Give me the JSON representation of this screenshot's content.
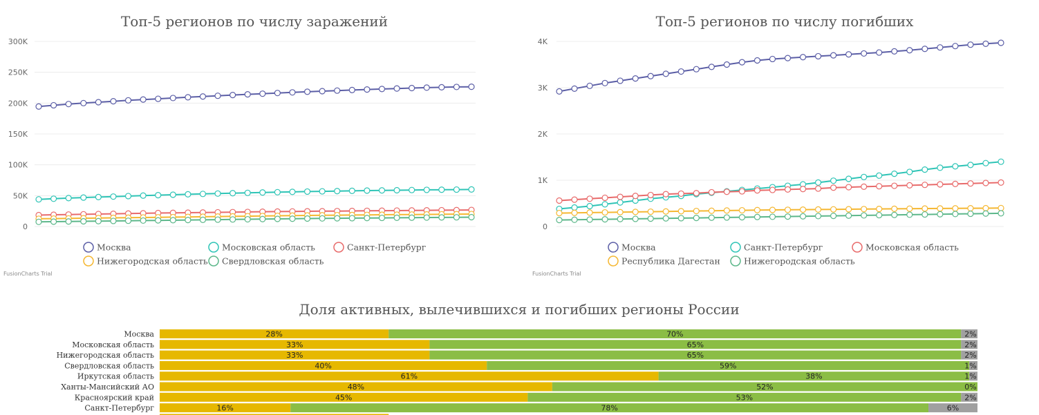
{
  "chart_data": [
    {
      "id": "infections",
      "type": "line",
      "title": "Топ-5 регионов по числу заражений",
      "ylim": [
        0,
        300000
      ],
      "y_ticks": [
        {
          "value": 0,
          "label": "0"
        },
        {
          "value": 50000,
          "label": "50K"
        },
        {
          "value": 100000,
          "label": "100K"
        },
        {
          "value": 150000,
          "label": "150K"
        },
        {
          "value": 200000,
          "label": "200K"
        },
        {
          "value": 250000,
          "label": "250K"
        },
        {
          "value": 300000,
          "label": "300K"
        }
      ],
      "grid": true,
      "legend_position": "bottom",
      "point_count": 30,
      "series": [
        {
          "name": "Москва",
          "color": "#5b5ea6",
          "values": [
            194500,
            196500,
            198500,
            200000,
            201500,
            203000,
            204500,
            205800,
            207000,
            208300,
            209500,
            210700,
            211900,
            213100,
            214200,
            215300,
            216400,
            217400,
            218400,
            219400,
            220300,
            221200,
            222100,
            222900,
            223700,
            224400,
            225100,
            225700,
            226200,
            226500
          ]
        },
        {
          "name": "Московская область",
          "color": "#2ec4b6",
          "values": [
            44000,
            45000,
            46000,
            46900,
            47700,
            48500,
            49300,
            50100,
            50800,
            51500,
            52200,
            52800,
            53400,
            54000,
            54500,
            55100,
            55600,
            56100,
            56600,
            57000,
            57400,
            57800,
            58200,
            58500,
            58800,
            59100,
            59400,
            59600,
            59800,
            60000
          ]
        },
        {
          "name": "Санкт-Петербург",
          "color": "#e86a6a",
          "values": [
            18500,
            19000,
            19400,
            19800,
            20200,
            20600,
            21000,
            21400,
            21800,
            22100,
            22400,
            22700,
            23000,
            23300,
            23600,
            23900,
            24200,
            24400,
            24600,
            24800,
            25000,
            25200,
            25400,
            25600,
            25800,
            26000,
            26200,
            26400,
            26600,
            26800
          ]
        },
        {
          "name": "Нижегородская область",
          "color": "#f5b731",
          "values": [
            12500,
            12800,
            13100,
            13400,
            13700,
            14000,
            14300,
            14600,
            14900,
            15200,
            15500,
            15800,
            16100,
            16400,
            16700,
            17000,
            17300,
            17600,
            17900,
            18200,
            18400,
            18600,
            18800,
            19000,
            19200,
            19400,
            19600,
            19800,
            20000,
            20200
          ]
        },
        {
          "name": "Свердловская область",
          "color": "#5cb78a",
          "values": [
            7500,
            7800,
            8100,
            8400,
            8700,
            9000,
            9300,
            9600,
            9900,
            10200,
            10500,
            10800,
            11100,
            11400,
            11700,
            12000,
            12300,
            12600,
            12900,
            13100,
            13300,
            13500,
            13700,
            13900,
            14100,
            14300,
            14500,
            14700,
            14900,
            15100
          ]
        }
      ],
      "watermark": "FusionCharts Trial"
    },
    {
      "id": "deaths",
      "type": "line",
      "title": "Топ-5 регионов по числу погибших",
      "ylim": [
        0,
        4000
      ],
      "y_ticks": [
        {
          "value": 0,
          "label": "0"
        },
        {
          "value": 1000,
          "label": "1K"
        },
        {
          "value": 2000,
          "label": "2K"
        },
        {
          "value": 3000,
          "label": "3K"
        },
        {
          "value": 4000,
          "label": "4K"
        }
      ],
      "grid": true,
      "legend_position": "bottom",
      "point_count": 30,
      "series": [
        {
          "name": "Москва",
          "color": "#5b5ea6",
          "values": [
            2920,
            2980,
            3040,
            3100,
            3150,
            3200,
            3250,
            3300,
            3350,
            3400,
            3450,
            3500,
            3550,
            3590,
            3620,
            3640,
            3660,
            3680,
            3700,
            3720,
            3740,
            3760,
            3785,
            3810,
            3840,
            3870,
            3900,
            3930,
            3950,
            3970
          ]
        },
        {
          "name": "Санкт-Петербург",
          "color": "#2ec4b6",
          "values": [
            380,
            410,
            440,
            480,
            520,
            560,
            600,
            630,
            660,
            700,
            730,
            760,
            790,
            820,
            850,
            880,
            910,
            950,
            990,
            1030,
            1070,
            1100,
            1140,
            1180,
            1230,
            1270,
            1300,
            1330,
            1370,
            1400
          ]
        },
        {
          "name": "Московская область",
          "color": "#e86a6a",
          "values": [
            560,
            580,
            600,
            620,
            640,
            660,
            680,
            700,
            710,
            720,
            740,
            750,
            760,
            780,
            790,
            800,
            810,
            820,
            840,
            850,
            860,
            870,
            880,
            890,
            900,
            910,
            920,
            930,
            940,
            950
          ]
        },
        {
          "name": "Республика Дагестан",
          "color": "#f5b731",
          "values": [
            290,
            295,
            300,
            305,
            310,
            315,
            320,
            325,
            330,
            335,
            340,
            345,
            350,
            355,
            358,
            361,
            364,
            367,
            370,
            373,
            376,
            379,
            382,
            385,
            388,
            390,
            392,
            394,
            396,
            398
          ]
        },
        {
          "name": "Нижегородская область",
          "color": "#5cb78a",
          "values": [
            140,
            145,
            150,
            155,
            160,
            165,
            170,
            175,
            180,
            185,
            190,
            195,
            200,
            205,
            210,
            215,
            220,
            225,
            230,
            235,
            240,
            245,
            250,
            255,
            260,
            265,
            270,
            275,
            280,
            285
          ]
        }
      ],
      "watermark": "FusionCharts Trial"
    },
    {
      "id": "shares",
      "type": "bar",
      "orientation": "horizontal",
      "stacked": "percent",
      "title": "Доля активных, вылечившихся и погибших регионы России",
      "categories": [
        "Москва",
        "Московская область",
        "Нижегородская область",
        "Свердловская область",
        "Иркутская область",
        "Ханты-Мансийский АО",
        "Красноярский край",
        "Санкт-Петербург"
      ],
      "series": [
        {
          "color": "#e6b800",
          "values": [
            28,
            33,
            33,
            40,
            61,
            48,
            45,
            16
          ],
          "labels": [
            "28%",
            "33%",
            "33%",
            "40%",
            "61%",
            "48%",
            "45%",
            "16%"
          ]
        },
        {
          "color": "#8bbd45",
          "values": [
            70,
            65,
            65,
            59,
            38,
            52,
            53,
            78
          ],
          "labels": [
            "70%",
            "65%",
            "65%",
            "59%",
            "38%",
            "52%",
            "53%",
            "78%"
          ]
        },
        {
          "color": "#a0a0a0",
          "values": [
            2,
            2,
            2,
            1,
            1,
            0,
            2,
            6
          ],
          "labels": [
            "2%",
            "2%",
            "2%",
            "1%",
            "1%",
            "0%",
            "2%",
            "6%"
          ]
        }
      ]
    }
  ]
}
